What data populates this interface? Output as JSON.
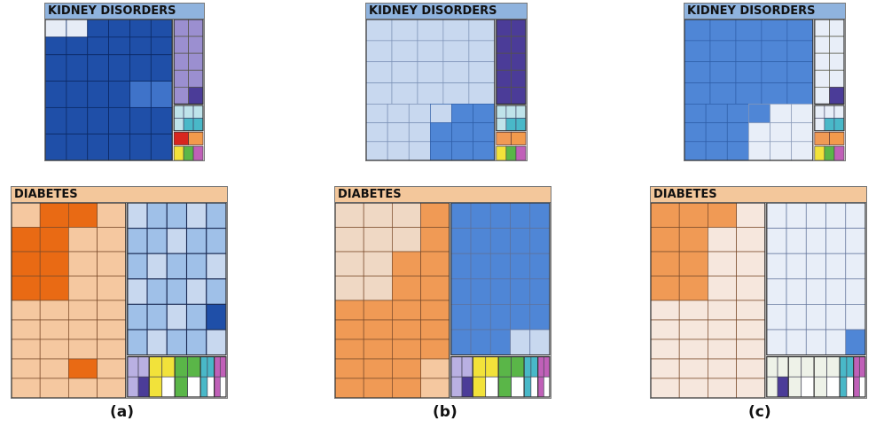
{
  "panels": [
    {
      "id": "a",
      "caption": "(a)",
      "kidney_title": "KIDNEY DISORDERS",
      "diabetes_title": "DIABETES"
    },
    {
      "id": "b",
      "caption": "(b)",
      "kidney_title": "KIDNEY DISORDERS",
      "diabetes_title": "DIABETES"
    },
    {
      "id": "c",
      "caption": "(c)",
      "kidney_title": "KIDNEY DISORDERS",
      "diabetes_title": "DIABETES"
    }
  ],
  "colors": {
    "kidney_header": "#8fb3de",
    "diabetes_header": "#f3c79b",
    "dark_blue": "#1f4fa8",
    "mid_blue": "#4f86d6",
    "light_blue": "#c8d8ef",
    "pale_blue": "#e8eef8",
    "dark_orange": "#e96a14",
    "mid_orange": "#f09a55",
    "light_orange": "#f5c8a0",
    "pale_orange": "#f6e7dd",
    "purple": "#9b8fd0",
    "dark_purple": "#4b3c98",
    "teal": "#49b8c8",
    "yellow": "#f2e23a",
    "green": "#5ab648",
    "magenta": "#c060b8",
    "red": "#d8261f"
  }
}
